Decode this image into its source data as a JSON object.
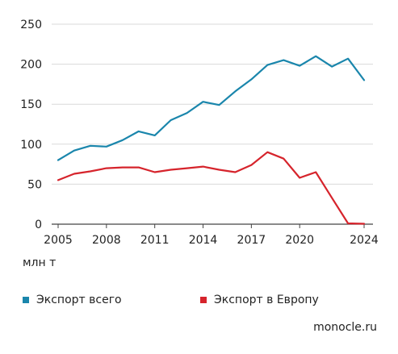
{
  "chart_data": {
    "type": "line",
    "title": "",
    "xlabel": "",
    "ylabel": "млн т",
    "ylim": [
      0,
      250
    ],
    "xlim": [
      2005,
      2024
    ],
    "y_ticks": [
      0,
      50,
      100,
      150,
      200,
      250
    ],
    "x_ticks": [
      2005,
      2008,
      2011,
      2014,
      2017,
      2020,
      2024
    ],
    "grid": "horizontal",
    "legend_position": "bottom",
    "series": [
      {
        "name": "Экспорт всего",
        "color": "#1a86ac",
        "x": [
          2005,
          2006,
          2007,
          2008,
          2009,
          2010,
          2011,
          2012,
          2013,
          2014,
          2015,
          2016,
          2017,
          2018,
          2019,
          2020,
          2021,
          2022,
          2023,
          2024
        ],
        "values": [
          80,
          92,
          98,
          97,
          105,
          116,
          111,
          130,
          139,
          153,
          149,
          166,
          181,
          199,
          205,
          198,
          210,
          197,
          207,
          180
        ]
      },
      {
        "name": "Экспорт в Европу",
        "color": "#d6242c",
        "x": [
          2005,
          2006,
          2007,
          2008,
          2009,
          2010,
          2011,
          2012,
          2013,
          2014,
          2015,
          2016,
          2017,
          2018,
          2019,
          2020,
          2021,
          2022,
          2023,
          2024
        ],
        "values": [
          55,
          63,
          66,
          70,
          71,
          71,
          65,
          68,
          70,
          72,
          68,
          65,
          74,
          90,
          82,
          58,
          65,
          33,
          1,
          0.5
        ]
      }
    ]
  },
  "source": "monocle.ru"
}
